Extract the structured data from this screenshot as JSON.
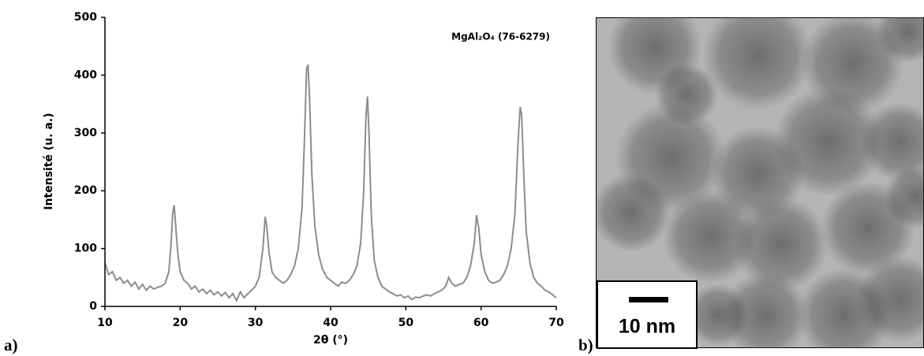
{
  "chart_data": {
    "type": "line",
    "x_label": "2θ (°)",
    "y_label": "Intensité (u. a.)",
    "annotation": "MgAl₂O₄ (76-6279)",
    "xlim": [
      10,
      70
    ],
    "xticks": [
      10,
      20,
      30,
      40,
      50,
      60,
      70
    ],
    "ylim": [
      0,
      500
    ],
    "yticks": [
      0,
      100,
      200,
      300,
      400,
      500
    ],
    "grid": false,
    "series": [
      {
        "color": "#8c8c8c",
        "x": [
          10,
          10.5,
          11,
          11.5,
          12,
          12.5,
          13,
          13.5,
          14,
          14.5,
          15,
          15.5,
          16,
          16.5,
          17,
          17.5,
          18,
          18.5,
          18.8,
          19.0,
          19.2,
          19.4,
          19.7,
          20,
          20.5,
          21,
          21.5,
          22,
          22.5,
          23,
          23.5,
          24,
          24.5,
          25,
          25.5,
          26,
          26.5,
          27,
          27.5,
          28,
          28.5,
          29,
          29.5,
          30,
          30.5,
          31,
          31.3,
          31.5,
          31.8,
          32.2,
          32.7,
          33.2,
          33.7,
          34.2,
          34.7,
          35.2,
          35.7,
          36.2,
          36.5,
          36.8,
          37.0,
          37.2,
          37.5,
          37.9,
          38.4,
          38.9,
          39.5,
          40,
          40.5,
          41,
          41.5,
          42,
          42.5,
          43,
          43.5,
          44,
          44.4,
          44.7,
          44.9,
          45.1,
          45.4,
          45.8,
          46.3,
          46.8,
          47.3,
          47.8,
          48.3,
          48.8,
          49.3,
          49.8,
          50.3,
          50.8,
          51.3,
          51.8,
          52.3,
          52.8,
          53.3,
          53.8,
          54.3,
          54.8,
          55.3,
          55.7,
          56.1,
          56.6,
          57.1,
          57.6,
          58.1,
          58.6,
          59.1,
          59.4,
          59.7,
          60.0,
          60.5,
          61,
          61.5,
          62,
          62.5,
          63,
          63.5,
          64,
          64.5,
          64.9,
          65.2,
          65.4,
          65.7,
          66,
          66.5,
          67,
          67.5,
          68,
          68.5,
          69,
          69.5,
          70
        ],
        "values": [
          75,
          55,
          60,
          45,
          50,
          40,
          45,
          35,
          42,
          30,
          38,
          28,
          35,
          30,
          33,
          35,
          40,
          60,
          110,
          160,
          175,
          140,
          90,
          60,
          45,
          40,
          30,
          35,
          25,
          30,
          22,
          28,
          20,
          25,
          18,
          24,
          15,
          22,
          10,
          25,
          15,
          22,
          28,
          35,
          50,
          100,
          155,
          140,
          95,
          60,
          50,
          45,
          40,
          45,
          55,
          70,
          100,
          170,
          280,
          410,
          418,
          360,
          230,
          140,
          90,
          65,
          50,
          45,
          40,
          35,
          42,
          40,
          45,
          55,
          70,
          110,
          200,
          330,
          363,
          300,
          160,
          80,
          50,
          35,
          30,
          25,
          22,
          18,
          20,
          15,
          18,
          12,
          16,
          15,
          18,
          20,
          18,
          22,
          25,
          28,
          35,
          50,
          40,
          35,
          38,
          40,
          50,
          70,
          110,
          158,
          135,
          90,
          60,
          45,
          40,
          42,
          45,
          55,
          70,
          100,
          160,
          280,
          345,
          330,
          220,
          130,
          75,
          50,
          40,
          35,
          28,
          25,
          20,
          15
        ]
      }
    ]
  },
  "panel_labels": [
    "a)",
    "b)"
  ],
  "image": {
    "scale_bar": "10 nm"
  }
}
